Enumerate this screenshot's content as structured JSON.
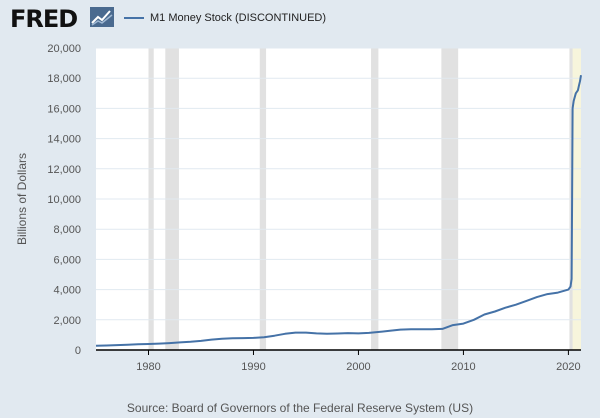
{
  "header": {
    "logo_text": "FRED",
    "logo_icon": "line-chart-icon"
  },
  "colors": {
    "background": "#e1e9f0",
    "plot_background": "#ffffff",
    "series": "#4572a7",
    "recession": "#e1e1e1",
    "highlight": "#f7f5dc",
    "grid": "#e1e9f0"
  },
  "chart_data": {
    "type": "line",
    "title": "",
    "xlabel": "",
    "ylabel": "Billions of Dollars",
    "xlim": [
      1975.0,
      2021.2
    ],
    "ylim": [
      0,
      20000
    ],
    "y_ticks": [
      0,
      2000,
      4000,
      6000,
      8000,
      10000,
      12000,
      14000,
      16000,
      18000,
      20000
    ],
    "y_tick_labels": [
      "0",
      "2,000",
      "4,000",
      "6,000",
      "8,000",
      "10,000",
      "12,000",
      "14,000",
      "16,000",
      "18,000",
      "20,000"
    ],
    "x_ticks": [
      1980,
      1990,
      2000,
      2010,
      2020
    ],
    "x_tick_labels": [
      "1980",
      "1990",
      "2000",
      "2010",
      "2020"
    ],
    "grid": true,
    "legend_position": "top-left",
    "recessions": [
      [
        1980.0,
        1980.5
      ],
      [
        1981.6,
        1982.9
      ],
      [
        1990.6,
        1991.2
      ],
      [
        2001.2,
        2001.9
      ],
      [
        2007.9,
        2009.5
      ],
      [
        2020.1,
        2020.4
      ]
    ],
    "highlight_range": [
      2020.1,
      2021.2
    ],
    "series": [
      {
        "name": "M1 Money Stock (DISCONTINUED)",
        "x": [
          1975,
          1976,
          1977,
          1978,
          1979,
          1980,
          1981,
          1982,
          1983,
          1984,
          1985,
          1986,
          1987,
          1988,
          1989,
          1990,
          1991,
          1992,
          1993,
          1994,
          1995,
          1996,
          1997,
          1998,
          1999,
          2000,
          2001,
          2002,
          2003,
          2004,
          2005,
          2006,
          2007,
          2008,
          2009,
          2010,
          2011,
          2012,
          2013,
          2014,
          2015,
          2016,
          2017,
          2018,
          2019,
          2020.0,
          2020.2,
          2020.3,
          2020.35,
          2020.4,
          2020.5,
          2020.7,
          2020.9,
          2021.0,
          2021.1,
          2021.2
        ],
        "y": [
          285,
          300,
          325,
          350,
          375,
          400,
          425,
          455,
          500,
          545,
          600,
          690,
          750,
          775,
          785,
          800,
          850,
          950,
          1070,
          1150,
          1150,
          1100,
          1080,
          1090,
          1120,
          1100,
          1130,
          1200,
          1280,
          1350,
          1380,
          1370,
          1370,
          1400,
          1650,
          1750,
          2000,
          2350,
          2550,
          2800,
          3000,
          3250,
          3500,
          3700,
          3800,
          4000,
          4200,
          4700,
          10000,
          16000,
          16500,
          17000,
          17200,
          17500,
          17800,
          18200
        ]
      }
    ]
  },
  "source": "Source: Board of Governors of the Federal Reserve System (US)"
}
